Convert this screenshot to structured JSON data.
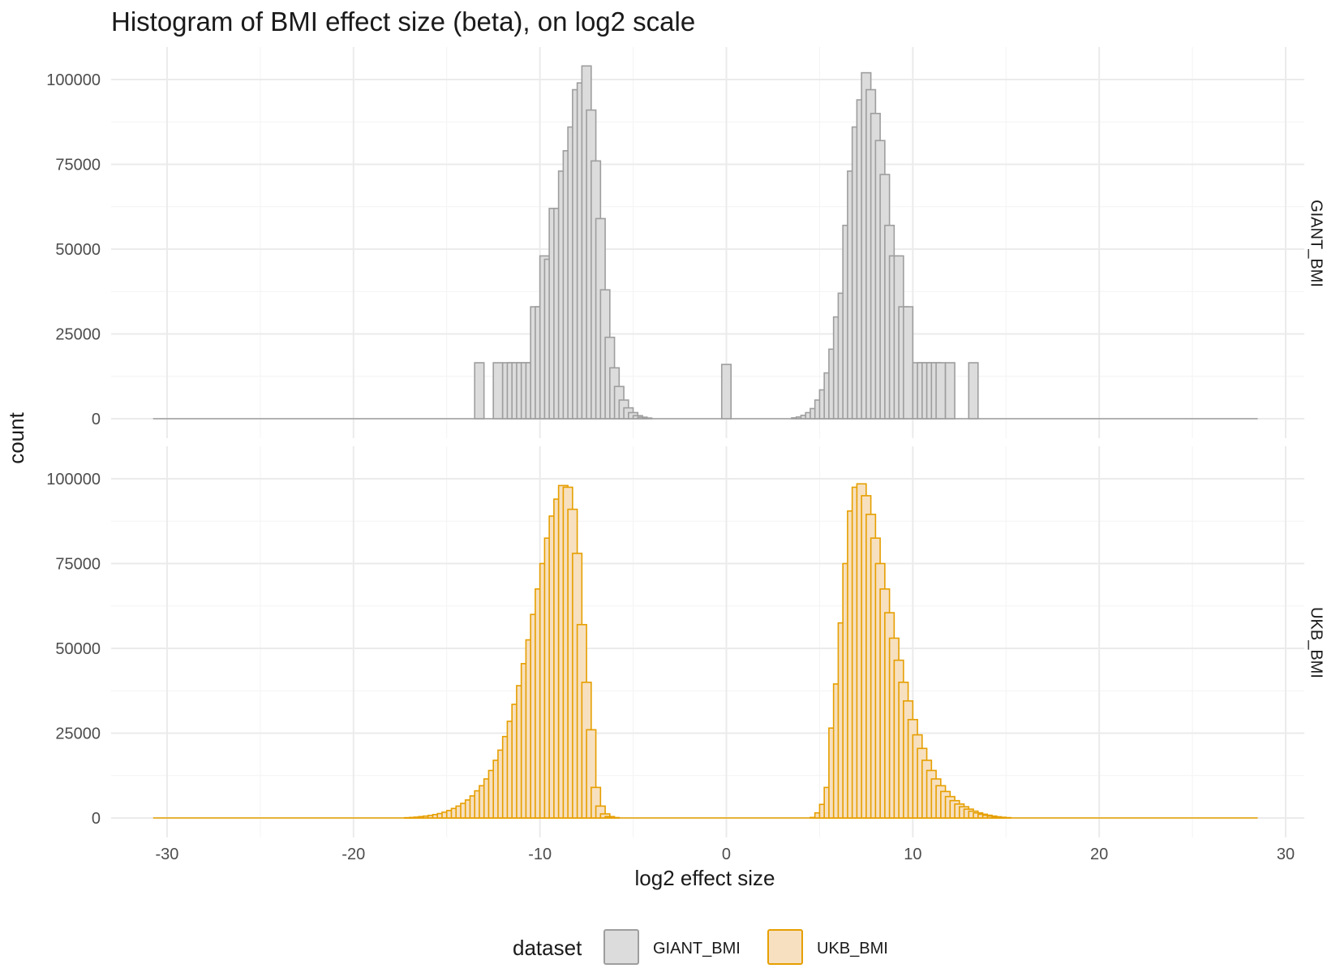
{
  "chart_data": {
    "type": "bar",
    "title": "Histogram of BMI effect size (beta), on log2 scale",
    "xlabel": "log2 effect size",
    "ylabel": "count",
    "xlim": [
      -33,
      31
    ],
    "ylim": [
      0,
      108000
    ],
    "x_ticks": [
      -30,
      -20,
      -10,
      0,
      10,
      20,
      30
    ],
    "x_tick_labels": [
      "-30",
      "-20",
      "-10",
      "0",
      "10",
      "20",
      "30"
    ],
    "y_ticks": [
      0,
      25000,
      50000,
      75000,
      100000
    ],
    "y_tick_labels": [
      "0",
      "25000",
      "50000",
      "75000",
      "100000"
    ],
    "grid": true,
    "legend": {
      "title": "dataset",
      "position": "bottom"
    },
    "bin_width": 0.5,
    "x_range": [
      -30.75,
      28.5
    ],
    "series": [
      {
        "name": "GIANT_BMI",
        "facet_label": "GIANT_BMI",
        "fill": "#dcdcdc",
        "stroke": "#9e9e9e",
        "bins": [
          {
            "x": -13.25,
            "y": 16500
          },
          {
            "x": -12.25,
            "y": 16500
          },
          {
            "x": -11.75,
            "y": 16500
          },
          {
            "x": -11.5,
            "y": 16500
          },
          {
            "x": -11.25,
            "y": 16500
          },
          {
            "x": -11.0,
            "y": 16500
          },
          {
            "x": -10.75,
            "y": 16500
          },
          {
            "x": -10.5,
            "y": 16500
          },
          {
            "x": -10.25,
            "y": 33000
          },
          {
            "x": -10.0,
            "y": 33000
          },
          {
            "x": -9.75,
            "y": 48000
          },
          {
            "x": -9.5,
            "y": 47000
          },
          {
            "x": -9.25,
            "y": 62000
          },
          {
            "x": -9.0,
            "y": 62000
          },
          {
            "x": -8.75,
            "y": 73000
          },
          {
            "x": -8.5,
            "y": 79000
          },
          {
            "x": -8.25,
            "y": 86000
          },
          {
            "x": -8.0,
            "y": 97000
          },
          {
            "x": -7.75,
            "y": 99000
          },
          {
            "x": -7.5,
            "y": 104000
          },
          {
            "x": -7.25,
            "y": 91000
          },
          {
            "x": -7.0,
            "y": 76000
          },
          {
            "x": -6.75,
            "y": 59000
          },
          {
            "x": -6.5,
            "y": 38000
          },
          {
            "x": -6.25,
            "y": 24000
          },
          {
            "x": -6.0,
            "y": 15000
          },
          {
            "x": -5.75,
            "y": 9500
          },
          {
            "x": -5.5,
            "y": 5500
          },
          {
            "x": -5.25,
            "y": 3200
          },
          {
            "x": -5.0,
            "y": 1800
          },
          {
            "x": -4.75,
            "y": 900
          },
          {
            "x": -4.5,
            "y": 450
          },
          {
            "x": -4.25,
            "y": 200
          },
          {
            "x": 0.0,
            "y": 16000
          },
          {
            "x": 3.75,
            "y": 250
          },
          {
            "x": 4.0,
            "y": 500
          },
          {
            "x": 4.25,
            "y": 1000
          },
          {
            "x": 4.5,
            "y": 1800
          },
          {
            "x": 4.75,
            "y": 3000
          },
          {
            "x": 5.0,
            "y": 5500
          },
          {
            "x": 5.25,
            "y": 8500
          },
          {
            "x": 5.5,
            "y": 13500
          },
          {
            "x": 5.75,
            "y": 20500
          },
          {
            "x": 6.0,
            "y": 30000
          },
          {
            "x": 6.25,
            "y": 37000
          },
          {
            "x": 6.5,
            "y": 57000
          },
          {
            "x": 6.75,
            "y": 73000
          },
          {
            "x": 7.0,
            "y": 86000
          },
          {
            "x": 7.25,
            "y": 94000
          },
          {
            "x": 7.5,
            "y": 102000
          },
          {
            "x": 7.75,
            "y": 97000
          },
          {
            "x": 8.0,
            "y": 90000
          },
          {
            "x": 8.25,
            "y": 82000
          },
          {
            "x": 8.5,
            "y": 72000
          },
          {
            "x": 8.75,
            "y": 57000
          },
          {
            "x": 9.0,
            "y": 48000
          },
          {
            "x": 9.25,
            "y": 48000
          },
          {
            "x": 9.5,
            "y": 33000
          },
          {
            "x": 9.75,
            "y": 33000
          },
          {
            "x": 10.25,
            "y": 16500
          },
          {
            "x": 10.5,
            "y": 16500
          },
          {
            "x": 10.75,
            "y": 16500
          },
          {
            "x": 11.0,
            "y": 16500
          },
          {
            "x": 11.25,
            "y": 16500
          },
          {
            "x": 11.5,
            "y": 16500
          },
          {
            "x": 12.0,
            "y": 16500
          },
          {
            "x": 13.25,
            "y": 16500
          }
        ]
      },
      {
        "name": "UKB_BMI",
        "facet_label": "UKB_BMI",
        "fill": "#f7e0bf",
        "stroke": "#e69f00",
        "bins": [
          {
            "x": -17.0,
            "y": 80
          },
          {
            "x": -16.75,
            "y": 150
          },
          {
            "x": -16.5,
            "y": 250
          },
          {
            "x": -16.25,
            "y": 400
          },
          {
            "x": -16.0,
            "y": 550
          },
          {
            "x": -15.75,
            "y": 750
          },
          {
            "x": -15.5,
            "y": 1000
          },
          {
            "x": -15.25,
            "y": 1300
          },
          {
            "x": -15.0,
            "y": 1700
          },
          {
            "x": -14.75,
            "y": 2200
          },
          {
            "x": -14.5,
            "y": 2800
          },
          {
            "x": -14.25,
            "y": 3500
          },
          {
            "x": -14.0,
            "y": 4300
          },
          {
            "x": -13.75,
            "y": 5300
          },
          {
            "x": -13.5,
            "y": 6500
          },
          {
            "x": -13.25,
            "y": 8000
          },
          {
            "x": -13.0,
            "y": 9500
          },
          {
            "x": -12.75,
            "y": 11500
          },
          {
            "x": -12.5,
            "y": 14000
          },
          {
            "x": -12.25,
            "y": 17000
          },
          {
            "x": -12.0,
            "y": 20000
          },
          {
            "x": -11.75,
            "y": 24000
          },
          {
            "x": -11.5,
            "y": 28500
          },
          {
            "x": -11.25,
            "y": 33500
          },
          {
            "x": -11.0,
            "y": 39000
          },
          {
            "x": -10.75,
            "y": 45500
          },
          {
            "x": -10.5,
            "y": 52500
          },
          {
            "x": -10.25,
            "y": 60000
          },
          {
            "x": -10.0,
            "y": 67500
          },
          {
            "x": -9.75,
            "y": 75000
          },
          {
            "x": -9.5,
            "y": 82500
          },
          {
            "x": -9.25,
            "y": 89000
          },
          {
            "x": -9.0,
            "y": 94000
          },
          {
            "x": -8.75,
            "y": 98000
          },
          {
            "x": -8.5,
            "y": 97500
          },
          {
            "x": -8.25,
            "y": 91000
          },
          {
            "x": -8.0,
            "y": 78000
          },
          {
            "x": -7.75,
            "y": 57000
          },
          {
            "x": -7.5,
            "y": 40000
          },
          {
            "x": -7.25,
            "y": 26000
          },
          {
            "x": -7.0,
            "y": 9000
          },
          {
            "x": -6.75,
            "y": 3500
          },
          {
            "x": -6.5,
            "y": 1200
          },
          {
            "x": -6.25,
            "y": 400
          },
          {
            "x": -6.0,
            "y": 120
          },
          {
            "x": 4.75,
            "y": 150
          },
          {
            "x": 5.0,
            "y": 1500
          },
          {
            "x": 5.25,
            "y": 4000
          },
          {
            "x": 5.5,
            "y": 9000
          },
          {
            "x": 5.75,
            "y": 26500
          },
          {
            "x": 6.0,
            "y": 39500
          },
          {
            "x": 6.25,
            "y": 57500
          },
          {
            "x": 6.5,
            "y": 75000
          },
          {
            "x": 6.75,
            "y": 90500
          },
          {
            "x": 7.0,
            "y": 97500
          },
          {
            "x": 7.25,
            "y": 98500
          },
          {
            "x": 7.5,
            "y": 95000
          },
          {
            "x": 7.75,
            "y": 89500
          },
          {
            "x": 8.0,
            "y": 82500
          },
          {
            "x": 8.25,
            "y": 75000
          },
          {
            "x": 8.5,
            "y": 67500
          },
          {
            "x": 8.75,
            "y": 60500
          },
          {
            "x": 9.0,
            "y": 53000
          },
          {
            "x": 9.25,
            "y": 46500
          },
          {
            "x": 9.5,
            "y": 40000
          },
          {
            "x": 9.75,
            "y": 34500
          },
          {
            "x": 10.0,
            "y": 29000
          },
          {
            "x": 10.25,
            "y": 24500
          },
          {
            "x": 10.5,
            "y": 20500
          },
          {
            "x": 10.75,
            "y": 17000
          },
          {
            "x": 11.0,
            "y": 14000
          },
          {
            "x": 11.25,
            "y": 11500
          },
          {
            "x": 11.5,
            "y": 9500
          },
          {
            "x": 11.75,
            "y": 7800
          },
          {
            "x": 12.0,
            "y": 6300
          },
          {
            "x": 12.25,
            "y": 5100
          },
          {
            "x": 12.5,
            "y": 4100
          },
          {
            "x": 12.75,
            "y": 3300
          },
          {
            "x": 13.0,
            "y": 2600
          },
          {
            "x": 13.25,
            "y": 2000
          },
          {
            "x": 13.5,
            "y": 1500
          },
          {
            "x": 13.75,
            "y": 1100
          },
          {
            "x": 14.0,
            "y": 800
          },
          {
            "x": 14.25,
            "y": 550
          },
          {
            "x": 14.5,
            "y": 350
          },
          {
            "x": 14.75,
            "y": 200
          },
          {
            "x": 15.0,
            "y": 100
          }
        ]
      }
    ]
  }
}
